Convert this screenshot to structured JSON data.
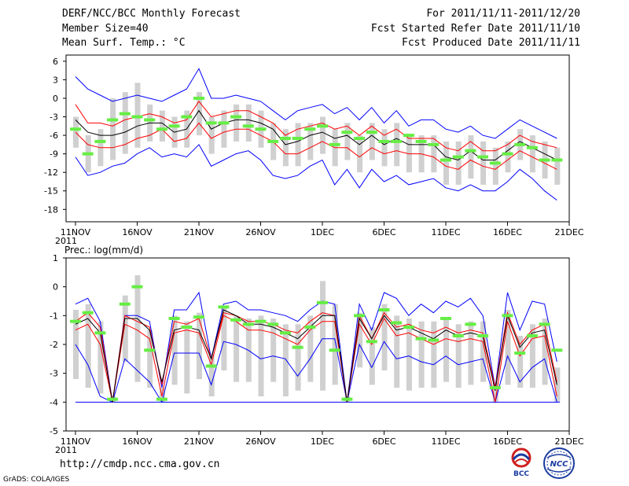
{
  "header": {
    "left": [
      "DERF/NCC/BCC Monthly Forecast",
      "Member Size=40",
      "Mean Surf. Temp.: °C"
    ],
    "right": [
      "For 2011/11/11-2011/12/20",
      "Fcst Started Refer Date 2011/11/10",
      "Fcst Produced Date 2011/11/11"
    ]
  },
  "footer": {
    "url": "http://cmdp.ncc.cma.gov.cn",
    "credit": "GrADS: COLA/IGES",
    "logo1": "BCC",
    "logo2": "NCC"
  },
  "colors": {
    "outer": "#0000ff",
    "inner": "#ff0000",
    "median": "#000000",
    "bar": "#d0d0d0",
    "marker": "#66ee44"
  },
  "chart_data": [
    {
      "type": "line",
      "title": "Mean Surf. Temp.: °C",
      "xticks": [
        "11NOV",
        "16NOV",
        "21NOV",
        "26NOV",
        "1DEC",
        "6DEC",
        "11DEC",
        "16DEC",
        "21DEC"
      ],
      "xtick_year": "2011",
      "ylim": [
        -20,
        7
      ],
      "yticks": [
        6,
        3,
        0,
        -3,
        -6,
        -9,
        -12,
        -15,
        -18
      ],
      "days": 40,
      "series": [
        {
          "name": "ensemble max",
          "role": "outer_high",
          "values": [
            3.5,
            1.5,
            0.5,
            -0.5,
            0,
            0.5,
            0,
            -0.5,
            0.5,
            1.5,
            4.8,
            0,
            0,
            0.5,
            0,
            -0.5,
            -2,
            -3.5,
            -2,
            -1.5,
            -1,
            -2.5,
            -1.5,
            -3.5,
            -1.5,
            -4,
            -2,
            -4.5,
            -3.5,
            -3.5,
            -5,
            -5.5,
            -4.5,
            -6,
            -6.5,
            -5,
            -3.5,
            -4.5,
            -5.5,
            -6.5
          ]
        },
        {
          "name": "upper percentile",
          "role": "inner_high",
          "values": [
            -1,
            -4,
            -4,
            -4.5,
            -3.5,
            -3,
            -2.5,
            -3,
            -4,
            -3.5,
            -0.5,
            -3,
            -2.5,
            -2,
            -2,
            -3,
            -4,
            -6,
            -5,
            -4.5,
            -4,
            -5,
            -4.5,
            -6,
            -4.5,
            -6,
            -5,
            -6.5,
            -6.5,
            -6.5,
            -8,
            -8.5,
            -7,
            -8.5,
            -8.5,
            -7.5,
            -6,
            -7,
            -7.5,
            -8
          ]
        },
        {
          "name": "ensemble median",
          "role": "median",
          "values": [
            -3.5,
            -5.5,
            -6,
            -6,
            -5.5,
            -4.5,
            -4,
            -4,
            -5.5,
            -5,
            -2,
            -5,
            -4,
            -3.5,
            -3.5,
            -4,
            -5,
            -7.5,
            -7,
            -6,
            -5.5,
            -6.5,
            -6,
            -7.5,
            -6,
            -7.5,
            -6.5,
            -7.5,
            -7.5,
            -7.5,
            -9.5,
            -10,
            -8.5,
            -10,
            -10,
            -8.5,
            -7,
            -8,
            -9,
            -10
          ]
        },
        {
          "name": "lower percentile",
          "role": "inner_low",
          "values": [
            -5.5,
            -7.5,
            -8,
            -8,
            -7.5,
            -6.5,
            -6,
            -5,
            -7,
            -6.5,
            -4,
            -6.5,
            -5.5,
            -5,
            -5,
            -6,
            -7,
            -9,
            -9,
            -8,
            -7,
            -8,
            -8,
            -9.5,
            -8,
            -9,
            -8.5,
            -9,
            -9,
            -9.5,
            -11,
            -11.5,
            -10,
            -11,
            -11.5,
            -10,
            -8.5,
            -9.5,
            -10.5,
            -11.5
          ]
        },
        {
          "name": "ensemble min",
          "role": "outer_low",
          "values": [
            -9.5,
            -12.5,
            -12,
            -11,
            -10.5,
            -9,
            -8,
            -9.5,
            -9,
            -9.5,
            -7.5,
            -11,
            -10,
            -9,
            -8.5,
            -10,
            -12.5,
            -13,
            -12.5,
            -11,
            -10,
            -14,
            -11.5,
            -14.5,
            -11.5,
            -13.5,
            -12.5,
            -14,
            -13.5,
            -13,
            -14.5,
            -15,
            -14,
            -15,
            -15,
            -13.5,
            -11.5,
            -13,
            -15,
            -16.5
          ]
        },
        {
          "name": "deterministic",
          "role": "marker",
          "values": [
            -5,
            -9,
            -7,
            -3.5,
            -2.5,
            -3,
            -3.5,
            -5,
            -4.5,
            -3,
            0,
            -4,
            -4,
            -3,
            -4.5,
            -5,
            -7,
            -6.5,
            -6.5,
            -5,
            -4.5,
            -7.5,
            -5.5,
            -6.5,
            -5.5,
            -7,
            -7,
            -6,
            -7,
            -7.5,
            -10,
            -9.5,
            -8.5,
            -9.5,
            -10.5,
            -9,
            -7.5,
            -8,
            -10,
            -10
          ]
        },
        {
          "name": "range high",
          "role": "bar_high",
          "values": [
            -3,
            -6,
            -5,
            0,
            1,
            2.5,
            -1,
            -2,
            -3,
            -2,
            1,
            -3,
            -2,
            -1,
            -1,
            -2,
            -4,
            -5,
            -4,
            -4,
            -3,
            -5,
            -4,
            -6,
            -4,
            -5,
            -4,
            -6,
            -6,
            -6,
            -7,
            -7,
            -6,
            -7,
            -8,
            -7,
            -5,
            -6,
            -7,
            -8
          ]
        },
        {
          "name": "range low",
          "role": "bar_low",
          "values": [
            -8,
            -12,
            -11,
            -10,
            -9,
            -8,
            -7,
            -7,
            -8,
            -8,
            -6,
            -9,
            -8,
            -7,
            -7,
            -8,
            -10,
            -11,
            -11,
            -10,
            -9,
            -11,
            -10,
            -12,
            -10,
            -11,
            -11,
            -12,
            -12,
            -12,
            -14,
            -14,
            -13,
            -14,
            -14,
            -12,
            -10,
            -12,
            -13,
            -14
          ]
        }
      ]
    },
    {
      "type": "line",
      "title": "Prec.: log(mm/d)",
      "xticks": [
        "11NOV",
        "16NOV",
        "21NOV",
        "26NOV",
        "1DEC",
        "6DEC",
        "11DEC",
        "16DEC",
        "21DEC"
      ],
      "xtick_year": "2011",
      "ylim": [
        -5,
        1
      ],
      "yticks": [
        1,
        0,
        -1,
        -2,
        -3,
        -4,
        -5
      ],
      "days": 40,
      "baseline": -4,
      "series": [
        {
          "name": "ensemble max",
          "role": "outer_high",
          "values": [
            -0.6,
            -0.4,
            -1.2,
            -4,
            -1,
            -1,
            -1.2,
            -3.5,
            -0.8,
            -0.8,
            -0.2,
            -2.5,
            -0.6,
            -0.5,
            -0.8,
            -0.8,
            -0.9,
            -1,
            -1.2,
            -0.8,
            -0.5,
            -0.6,
            -4,
            -0.6,
            -1.5,
            -0.2,
            -0.4,
            -1,
            -0.6,
            -0.9,
            -0.5,
            -0.7,
            -0.4,
            -1,
            -3.5,
            -0.2,
            -1.5,
            -0.5,
            -0.6,
            -2.6
          ]
        },
        {
          "name": "upper percentile",
          "role": "inner_high",
          "values": [
            -1.2,
            -0.9,
            -1.4,
            -4,
            -1,
            -1.2,
            -1.4,
            -3.4,
            -1.2,
            -1.3,
            -1.1,
            -2.5,
            -0.9,
            -1,
            -1.2,
            -1.2,
            -1.3,
            -1.5,
            -1.6,
            -1.2,
            -0.9,
            -1,
            -4,
            -1,
            -1.8,
            -0.9,
            -1.4,
            -1.3,
            -1.5,
            -1.6,
            -1.4,
            -1.6,
            -1.5,
            -1.6,
            -3.5,
            -0.9,
            -2.0,
            -1.5,
            -1.3,
            -3.3
          ]
        },
        {
          "name": "ensemble median",
          "role": "median",
          "values": [
            -1.3,
            -1.1,
            -1.6,
            -4,
            -1.1,
            -1.1,
            -1.5,
            -3.3,
            -1.5,
            -1.4,
            -1.5,
            -2.5,
            -0.8,
            -1,
            -1.3,
            -1.3,
            -1.4,
            -1.6,
            -1.8,
            -1.4,
            -1,
            -1,
            -4,
            -1.1,
            -1.8,
            -1,
            -1.5,
            -1.4,
            -1.6,
            -1.8,
            -1.5,
            -1.7,
            -1.6,
            -1.7,
            -3.6,
            -1,
            -2.1,
            -1.6,
            -1.5,
            -3.4
          ]
        },
        {
          "name": "lower percentile",
          "role": "inner_low",
          "values": [
            -1.5,
            -1.3,
            -2,
            -4,
            -1.3,
            -1.5,
            -1.8,
            -3.8,
            -1.6,
            -1.5,
            -1.6,
            -2.7,
            -1,
            -1.2,
            -1.5,
            -1.5,
            -1.6,
            -1.8,
            -2,
            -1.5,
            -1.2,
            -1.2,
            -4,
            -1.3,
            -2,
            -1.1,
            -1.7,
            -1.6,
            -1.8,
            -2,
            -1.8,
            -1.9,
            -1.8,
            -1.9,
            -4,
            -1.2,
            -2.4,
            -1.8,
            -1.7,
            -3.8
          ]
        },
        {
          "name": "ensemble min",
          "role": "outer_low",
          "values": [
            -2,
            -2.7,
            -3.8,
            -4,
            -2.5,
            -2.9,
            -3.3,
            -4,
            -2.3,
            -2.3,
            -2.3,
            -3.4,
            -1.9,
            -2,
            -2.2,
            -2.5,
            -2.4,
            -2.5,
            -3.1,
            -2.5,
            -1.8,
            -1.8,
            -4,
            -2,
            -2.8,
            -1.9,
            -2.5,
            -2.4,
            -2.6,
            -2.7,
            -2.4,
            -2.7,
            -2.6,
            -2.5,
            -4,
            -2.4,
            -3.3,
            -2.8,
            -2.5,
            -4
          ]
        },
        {
          "name": "deterministic",
          "role": "marker",
          "values": [
            -1.2,
            -0.9,
            -1.6,
            -3.9,
            -0.6,
            0,
            -2.2,
            -3.9,
            -1.1,
            -1.4,
            -1.05,
            -2.75,
            -0.7,
            -1.15,
            -1.3,
            -1.2,
            -1.3,
            -1.6,
            -2.1,
            -1.4,
            -0.55,
            -2.2,
            -3.9,
            -1,
            -1.9,
            -0.8,
            -1.25,
            -1.4,
            -1.8,
            -1.85,
            -1.1,
            -1.7,
            -1.3,
            -1.7,
            -3.5,
            -1,
            -2.3,
            -1.7,
            -1.3,
            -2.2
          ]
        },
        {
          "name": "range high",
          "role": "bar_high",
          "values": [
            -0.8,
            -0.6,
            -1.2,
            -3.8,
            -0.3,
            0.4,
            -1.5,
            -3.5,
            -1,
            -1.2,
            -0.9,
            -2.3,
            -0.7,
            -1,
            -1.1,
            -1,
            -1.1,
            -1.3,
            -1.3,
            -1,
            0.2,
            -0.6,
            -3.8,
            -0.9,
            -1.4,
            -0.6,
            -1,
            -1.1,
            -1.2,
            -1.2,
            -1.1,
            -1.3,
            -1.2,
            -1.2,
            -3.3,
            -0.8,
            -1.7,
            -1.3,
            -1.1,
            -2.8
          ]
        },
        {
          "name": "range low",
          "role": "bar_low",
          "values": [
            -3.2,
            -3.5,
            -3.7,
            -4,
            -2.6,
            -3.3,
            -3.5,
            -4,
            -3.4,
            -3.7,
            -3.2,
            -3.8,
            -2.9,
            -3.3,
            -3.3,
            -3.8,
            -3.3,
            -3.8,
            -3.6,
            -3.3,
            -3.6,
            -3.4,
            -4,
            -2.8,
            -3.4,
            -2.9,
            -3.5,
            -3.6,
            -3.5,
            -3.5,
            -3.3,
            -3.5,
            -3.4,
            -3.3,
            -4,
            -3.4,
            -3.5,
            -3.5,
            -3.4,
            -4
          ]
        }
      ]
    }
  ],
  "panel2_label": "Prec.: log(mm/d)"
}
